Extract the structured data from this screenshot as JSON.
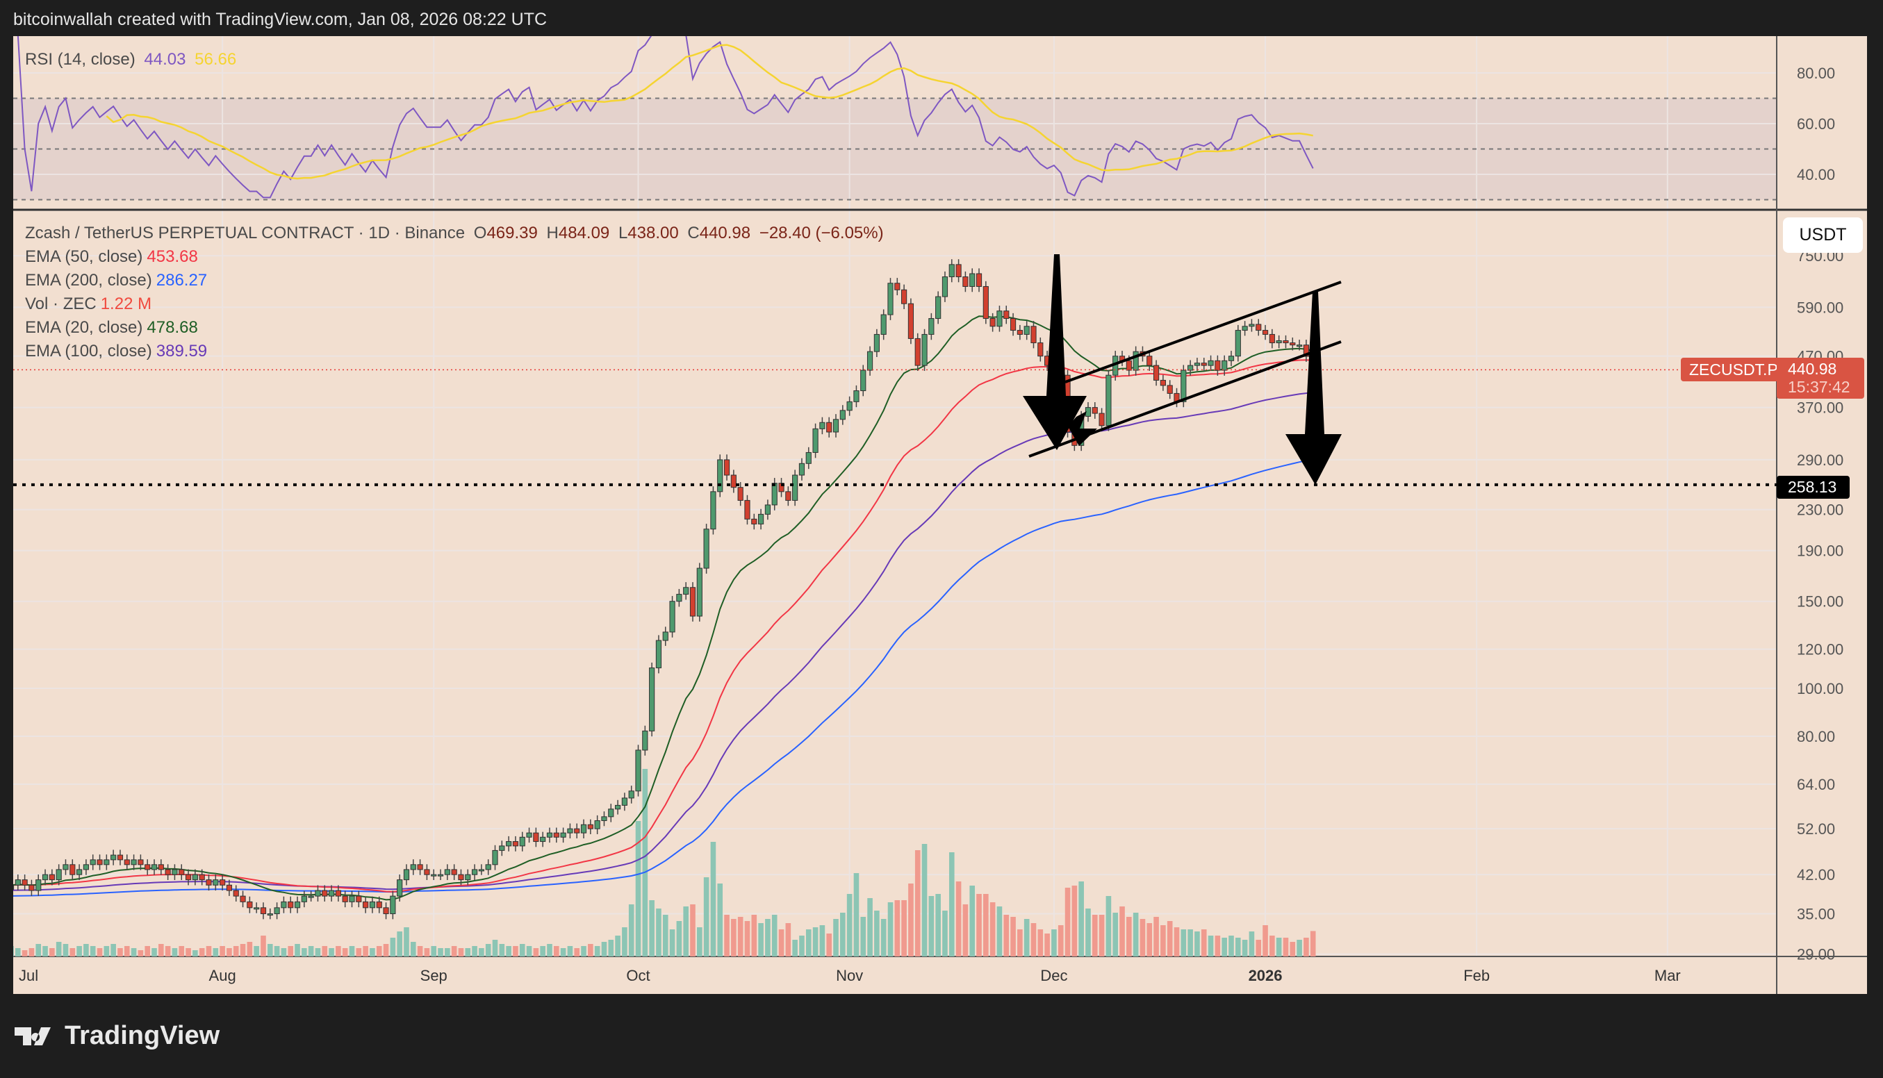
{
  "header": {
    "attribution": "bitcoinwallah created with TradingView.com, Jan 08, 2026 08:22 UTC"
  },
  "rsi": {
    "title": "RSI (14, close)",
    "value": "44.03",
    "ma_value": "56.66",
    "axis": [
      "80.00",
      "60.00",
      "40.00"
    ],
    "levels": [
      70,
      50,
      30
    ]
  },
  "legend": {
    "symbol": "Zcash / TetherUS PERPETUAL CONTRACT · 1D · Binance",
    "o_label": "O",
    "o": "469.39",
    "h_label": "H",
    "h": "484.09",
    "l_label": "L",
    "l": "438.00",
    "c_label": "C",
    "c": "440.98",
    "change": "−28.40 (−6.05%)",
    "ema50": {
      "label": "EMA (50, close)",
      "value": "453.68"
    },
    "ema200": {
      "label": "EMA (200, close)",
      "value": "286.27"
    },
    "vol": {
      "label": "Vol · ZEC",
      "value": "1.22 M"
    },
    "ema20": {
      "label": "EMA (20, close)",
      "value": "478.68"
    },
    "ema100": {
      "label": "EMA (100, close)",
      "value": "389.59"
    }
  },
  "currency_button": "USDT",
  "price_tag": {
    "symbol": "ZECUSDT.P",
    "price": "440.98",
    "countdown": "15:37:42"
  },
  "level_tag": "258.13",
  "colors": {
    "up": "#4f9a6e",
    "down": "#d2402f",
    "vol_up": "#8cc5b4",
    "vol_down": "#f09a8e",
    "ema20": "#1f5e25",
    "ema50": "#f23645",
    "ema100": "#673ab7",
    "ema200": "#2962ff",
    "rsi": "#7e57c2",
    "rsi_ma": "#f5d431"
  },
  "logo": "TradingView",
  "chart_data": {
    "type": "candlestick",
    "title": "Zcash / TetherUS PERPETUAL CONTRACT · 1D · Binance",
    "start_date": "2025-07-01",
    "y_scale": "log",
    "price_axis": [
      "750.00",
      "590.00",
      "470.00",
      "370.00",
      "290.00",
      "230.00",
      "190.00",
      "150.00",
      "120.00",
      "100.00",
      "80.00",
      "64.00",
      "52.00",
      "42.00",
      "35.00",
      "29.00"
    ],
    "time_axis": [
      "Jul",
      "Aug",
      "Sep",
      "Oct",
      "Nov",
      "Dec",
      "2026",
      "Feb",
      "Mar"
    ],
    "horizontal_level": 258.13,
    "closes": [
      40,
      41,
      40,
      39,
      41,
      42,
      41,
      43,
      44,
      42,
      43,
      44,
      45,
      44,
      45,
      46,
      45,
      44,
      45,
      44,
      43,
      44,
      43,
      42,
      43,
      42,
      41,
      42,
      41,
      40,
      41,
      40,
      39,
      38,
      37,
      36,
      36,
      35,
      35,
      36,
      37,
      36,
      37,
      38,
      38,
      39,
      38,
      39,
      38,
      37,
      38,
      37,
      36,
      37,
      36,
      35,
      38,
      41,
      43,
      44,
      43,
      42,
      42,
      42,
      43,
      42,
      41,
      42,
      43,
      43,
      44,
      47,
      48,
      49,
      48,
      50,
      51,
      49,
      50,
      51,
      50,
      51,
      52,
      51,
      53,
      52,
      54,
      55,
      57,
      58,
      60,
      62,
      75,
      82,
      110,
      125,
      130,
      150,
      155,
      160,
      140,
      175,
      210,
      250,
      290,
      270,
      255,
      240,
      220,
      215,
      225,
      235,
      260,
      250,
      240,
      270,
      285,
      300,
      335,
      345,
      330,
      350,
      365,
      380,
      400,
      440,
      480,
      520,
      570,
      660,
      640,
      600,
      510,
      450,
      520,
      560,
      620,
      680,
      720,
      680,
      650,
      690,
      650,
      560,
      540,
      580,
      560,
      530,
      520,
      540,
      500,
      470,
      450,
      460,
      430,
      330,
      310,
      355,
      370,
      360,
      340,
      430,
      470,
      460,
      440,
      480,
      470,
      450,
      420,
      410,
      395,
      380,
      440,
      450,
      455,
      450,
      460,
      440,
      460,
      470,
      530,
      540,
      545,
      530,
      520,
      500,
      505,
      500,
      495,
      495,
      469.39,
      440.98
    ],
    "volumes_m": [
      0.5,
      0.4,
      0.3,
      0.4,
      0.6,
      0.5,
      0.4,
      0.7,
      0.6,
      0.4,
      0.5,
      0.6,
      0.5,
      0.4,
      0.5,
      0.6,
      0.4,
      0.5,
      0.4,
      0.3,
      0.5,
      0.4,
      0.6,
      0.5,
      0.4,
      0.5,
      0.4,
      0.3,
      0.4,
      0.5,
      0.4,
      0.5,
      0.4,
      0.5,
      0.6,
      0.7,
      0.5,
      1.0,
      0.6,
      0.5,
      0.4,
      0.5,
      0.6,
      0.4,
      0.5,
      0.4,
      0.5,
      0.4,
      0.5,
      0.4,
      0.5,
      0.4,
      0.5,
      0.4,
      0.5,
      0.6,
      0.9,
      1.2,
      1.4,
      0.7,
      0.5,
      0.4,
      0.5,
      0.4,
      0.4,
      0.5,
      0.4,
      0.4,
      0.5,
      0.4,
      0.6,
      0.8,
      0.6,
      0.5,
      0.5,
      0.6,
      0.5,
      0.4,
      0.5,
      0.6,
      0.5,
      0.4,
      0.5,
      0.4,
      0.5,
      0.6,
      0.5,
      0.7,
      0.8,
      1.0,
      1.4,
      2.5,
      6.5,
      9.0,
      2.7,
      2.3,
      2.0,
      1.3,
      1.7,
      2.4,
      2.5,
      1.4,
      3.8,
      5.5,
      3.5,
      2.0,
      1.8,
      1.9,
      1.7,
      2.0,
      1.6,
      1.8,
      2.0,
      1.3,
      1.6,
      0.8,
      1.0,
      1.3,
      1.4,
      1.5,
      1.1,
      1.8,
      2.1,
      3.0,
      4.0,
      1.9,
      2.8,
      2.2,
      1.8,
      2.6,
      2.7,
      2.7,
      3.5,
      5.1,
      5.4,
      2.9,
      3.0,
      2.2,
      5.0,
      3.6,
      2.5,
      3.4,
      3.0,
      3.0,
      2.6,
      2.4,
      2.0,
      1.9,
      1.3,
      1.8,
      1.6,
      1.3,
      1.1,
      1.3,
      1.5,
      3.3,
      3.4,
      3.6,
      2.3,
      2.0,
      2.0,
      2.9,
      2.1,
      2.4,
      1.9,
      2.1,
      1.8,
      1.6,
      1.9,
      1.5,
      1.7,
      1.4,
      1.3,
      1.3,
      1.2,
      1.3,
      1.0,
      1.0,
      0.9,
      1.0,
      0.9,
      0.8,
      1.2,
      0.8,
      1.5,
      1.0,
      0.9,
      0.9,
      0.7,
      0.8,
      0.9,
      1.22
    ],
    "last_ohlc": {
      "open": 469.39,
      "high": 484.09,
      "low": 438.0,
      "close": 440.98
    }
  }
}
